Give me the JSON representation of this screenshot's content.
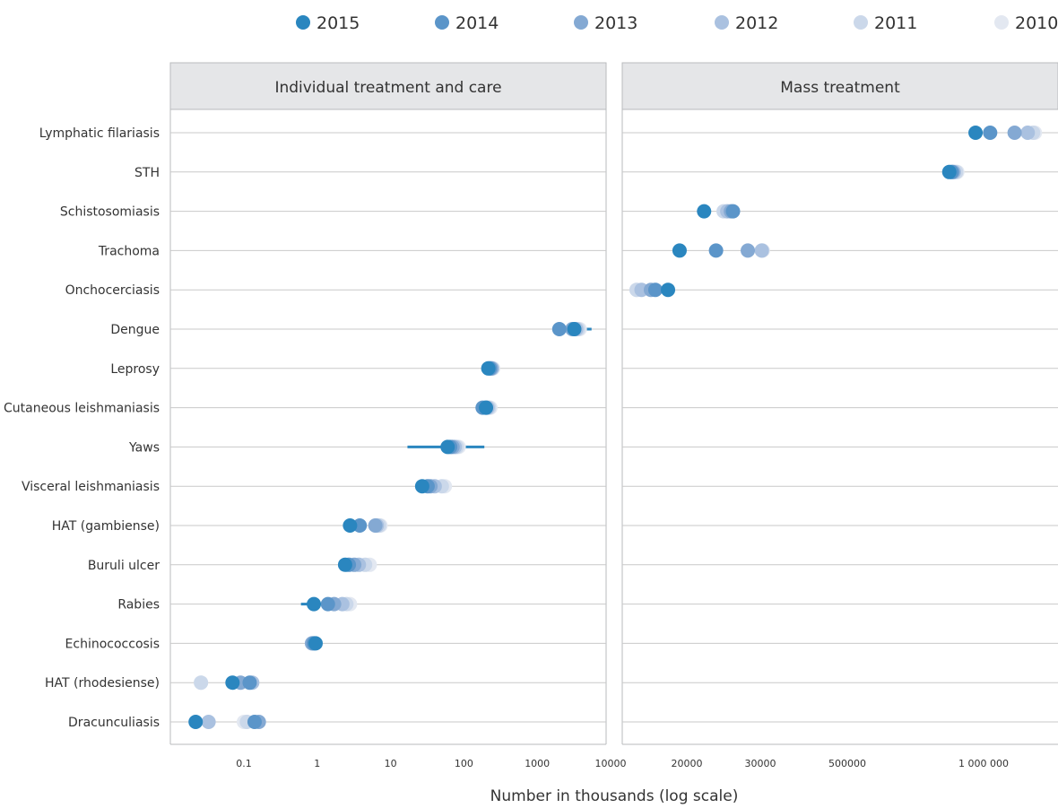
{
  "chart_data": {
    "type": "scatter",
    "scale": "log",
    "xlabel": "Number in thousands (log scale)",
    "legend": {
      "placement": "top",
      "entries": [
        {
          "label": "2015",
          "color": "#2a86bf"
        },
        {
          "label": "2014",
          "color": "#5b95c9"
        },
        {
          "label": "2013",
          "color": "#84a9d3"
        },
        {
          "label": "2012",
          "color": "#aac1e0"
        },
        {
          "label": "2011",
          "color": "#cbd8ea"
        },
        {
          "label": "2010",
          "color": "#e3e8f1"
        }
      ]
    },
    "years": [
      "2010",
      "2011",
      "2012",
      "2013",
      "2014",
      "2015"
    ],
    "categories": [
      "Lymphatic filariasis",
      "STH",
      "Schistosomiasis",
      "Trachoma",
      "Onchocerciasis",
      "Dengue",
      "Leprosy",
      "Cutaneous leishmaniasis",
      "Yaws",
      "Visceral leishmaniasis",
      "HAT (gambiense)",
      "Buruli ulcer",
      "Rabies",
      "Echinococcosis",
      "HAT (rhodesiense)",
      "Dracunculiasis"
    ],
    "panels": [
      {
        "title": "Individual treatment and care",
        "ticks": [
          {
            "value": 0.1,
            "label": "0.1"
          },
          {
            "value": 1,
            "label": "1"
          },
          {
            "value": 10,
            "label": "10"
          },
          {
            "value": 100,
            "label": "100"
          },
          {
            "value": 1000,
            "label": "1000"
          },
          {
            "value": 10000,
            "label": "10000"
          }
        ],
        "series": [
          {
            "category": "Dengue",
            "values": [
              3800,
              3600,
              3400,
              3000,
              2000,
              3200
            ],
            "range": [
              3000,
              5500
            ]
          },
          {
            "category": "Leprosy",
            "values": [
              250,
              245,
              240,
              235,
              225,
              215
            ]
          },
          {
            "category": "Cutaneous leishmaniasis",
            "values": [
              230,
              220,
              210,
              200,
              180,
              200
            ]
          },
          {
            "category": "Yaws",
            "values": [
              85,
              80,
              75,
              70,
              65,
              60
            ],
            "range": [
              17,
              190
            ]
          },
          {
            "category": "Visceral leishmaniasis",
            "values": [
              55,
              50,
              40,
              35,
              32,
              27
            ]
          },
          {
            "category": "HAT (gambiense)",
            "values": [
              7.3,
              7,
              6.5,
              6.2,
              3.8,
              2.8
            ]
          },
          {
            "category": "Buruli ulcer",
            "values": [
              5.2,
              4.5,
              3.7,
              3.2,
              2.7,
              2.4
            ]
          },
          {
            "category": "Rabies",
            "values": [
              2.8,
              2.5,
              2.2,
              1.7,
              1.4,
              0.9
            ],
            "range": [
              0.6,
              1.0
            ]
          },
          {
            "category": "Echinococcosis",
            "values": [
              0.9,
              0.9,
              0.85,
              0.85,
              0.9,
              0.95
            ]
          },
          {
            "category": "HAT (rhodesiense)",
            "values": [
              0.026,
              0.026,
              0.13,
              0.09,
              0.12,
              0.07
            ]
          },
          {
            "category": "Dracunculiasis",
            "values": [
              0.1,
              0.11,
              0.033,
              0.16,
              0.14,
              0.022
            ]
          }
        ]
      },
      {
        "title": "Mass treatment",
        "ticks": [
          {
            "value": 20000,
            "label": "20000"
          },
          {
            "value": 30000,
            "label": "30000"
          },
          {
            "value": 500000,
            "label": "500000"
          },
          {
            "value": 1000000,
            "label": "1 000 000"
          }
        ],
        "series": [
          {
            "category": "Lymphatic filariasis",
            "values": [
              1260000,
              1250000,
              1220000,
              1150000,
              1030000,
              960000
            ]
          },
          {
            "category": "STH",
            "values": [
              875000,
              870000,
              860000,
              855000,
              850000,
              840000
            ]
          },
          {
            "category": "Schistosomiasis",
            "values": [
              25000,
              24500,
              25000,
              25500,
              25800,
              22000
            ]
          },
          {
            "category": "Trachoma",
            "values": [
              32500,
              31500,
              31500,
              28000,
              23500,
              19000
            ]
          },
          {
            "category": "Onchocerciasis",
            "values": [
              14000,
              14000,
              14500,
              15500,
              16000,
              17500
            ]
          }
        ]
      }
    ]
  }
}
